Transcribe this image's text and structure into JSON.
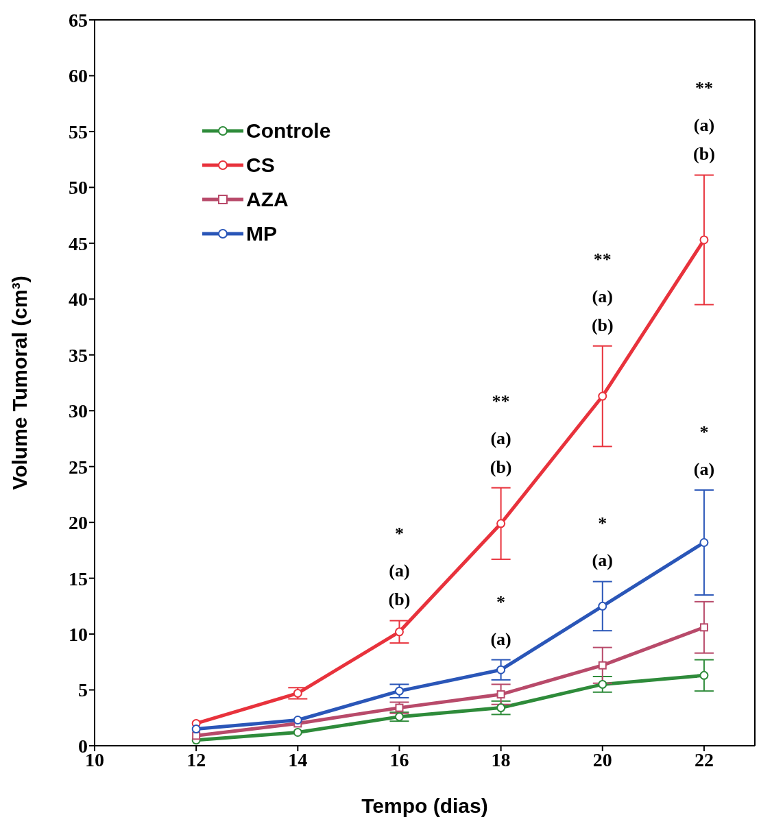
{
  "chart_data": {
    "type": "line",
    "xlabel": "Tempo (dias)",
    "ylabel": "Volume Tumoral (cm³)",
    "x": [
      12,
      14,
      16,
      18,
      20,
      22
    ],
    "xlim": [
      10,
      23
    ],
    "xticks": [
      10,
      12,
      14,
      16,
      18,
      20,
      22
    ],
    "ylim": [
      0,
      65
    ],
    "yticks": [
      0,
      5,
      10,
      15,
      20,
      25,
      30,
      35,
      40,
      45,
      50,
      55,
      60,
      65
    ],
    "grid": false,
    "legend": "top left",
    "marker": "circle",
    "line_style": "solid",
    "series": [
      {
        "name": "Controle",
        "color": "#2e8b3a",
        "values": [
          0.5,
          1.2,
          2.6,
          3.4,
          5.5,
          6.3
        ],
        "errors": [
          null,
          null,
          0.4,
          0.6,
          0.7,
          1.4
        ]
      },
      {
        "name": "CS",
        "color": "#e8323c",
        "values": [
          2.0,
          4.7,
          10.2,
          19.9,
          31.3,
          45.3
        ],
        "errors": [
          null,
          0.5,
          1.0,
          3.2,
          4.5,
          5.8
        ]
      },
      {
        "name": "AZA",
        "color": "#b84a6a",
        "marker": "square",
        "values": [
          0.9,
          2.0,
          3.4,
          4.6,
          7.2,
          10.6
        ],
        "errors": [
          null,
          null,
          0.5,
          0.9,
          1.6,
          2.3
        ]
      },
      {
        "name": "MP",
        "color": "#2a56b8",
        "values": [
          1.5,
          2.3,
          4.9,
          6.8,
          12.5,
          18.2
        ],
        "errors": [
          null,
          null,
          0.6,
          0.9,
          2.2,
          4.7
        ]
      }
    ],
    "annotations": [
      "*",
      "(a)",
      "(b)",
      "**",
      "(a)",
      "(b)",
      "*",
      "(a)",
      "**",
      "(a)",
      "(b)",
      "*",
      "(a)",
      "**",
      "(a)",
      "(b)",
      "*",
      "(a)"
    ]
  }
}
